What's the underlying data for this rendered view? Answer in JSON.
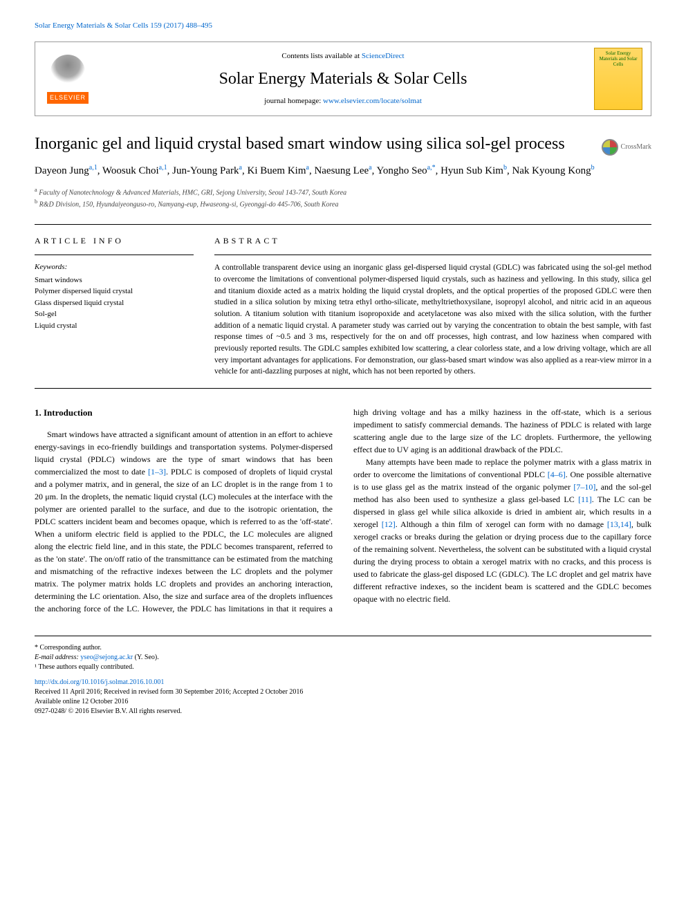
{
  "top_link": "Solar Energy Materials & Solar Cells 159 (2017) 488–495",
  "header": {
    "contents_prefix": "Contents lists available at ",
    "contents_link": "ScienceDirect",
    "journal_name": "Solar Energy Materials & Solar Cells",
    "homepage_prefix": "journal homepage: ",
    "homepage_link": "www.elsevier.com/locate/solmat",
    "elsevier_label": "ELSEVIER",
    "cover_text": "Solar Energy Materials and Solar Cells"
  },
  "crossmark_label": "CrossMark",
  "title": "Inorganic gel and liquid crystal based smart window using silica sol-gel process",
  "authors_html": "Dayeon Jung<sup>a,1</sup>, Woosuk Choi<sup>a,1</sup>, Jun-Young Park<sup>a</sup>, Ki Buem Kim<sup>a</sup>, Naesung Lee<sup>a</sup>, Yongho Seo<sup>a,*</sup>, Hyun Sub Kim<sup>b</sup>, Nak Kyoung Kong<sup>b</sup>",
  "affiliations": {
    "a": "Faculty of Nanotechnology & Advanced Materials, HMC, GRI, Sejong University, Seoul 143-747, South Korea",
    "b": "R&D Division, 150, Hyundaiyeonguso-ro, Namyang-eup, Hwaseong-si, Gyeonggi-do 445-706, South Korea"
  },
  "article_info": {
    "heading": "ARTICLE INFO",
    "keywords_label": "Keywords:",
    "keywords": [
      "Smart windows",
      "Polymer dispersed liquid crystal",
      "Glass dispersed liquid crystal",
      "Sol-gel",
      "Liquid crystal"
    ]
  },
  "abstract": {
    "heading": "ABSTRACT",
    "text": "A controllable transparent device using an inorganic glass gel-dispersed liquid crystal (GDLC) was fabricated using the sol-gel method to overcome the limitations of conventional polymer-dispersed liquid crystals, such as haziness and yellowing. In this study, silica gel and titanium dioxide acted as a matrix holding the liquid crystal droplets, and the optical properties of the proposed GDLC were then studied in a silica solution by mixing tetra ethyl ortho-silicate, methyltriethoxysilane, isopropyl alcohol, and nitric acid in an aqueous solution. A titanium solution with titanium isopropoxide and acetylacetone was also mixed with the silica solution, with the further addition of a nematic liquid crystal. A parameter study was carried out by varying the concentration to obtain the best sample, with fast response times of ~0.5 and 3 ms, respectively for the on and off processes, high contrast, and low haziness when compared with previously reported results. The GDLC samples exhibited low scattering, a clear colorless state, and a low driving voltage, which are all very important advantages for applications. For demonstration, our glass-based smart window was also applied as a rear-view mirror in a vehicle for anti-dazzling purposes at night, which has not been reported by others."
  },
  "introduction": {
    "heading": "1. Introduction",
    "para1_pre": "Smart windows have attracted a significant amount of attention in an effort to achieve energy-savings in eco-friendly buildings and transportation systems. Polymer-dispersed liquid crystal (PDLC) windows are the type of smart windows that has been commercialized the most to date ",
    "ref1": "[1–3]",
    "para1_post": ". PDLC is composed of droplets of liquid crystal and a polymer matrix, and in general, the size of an LC droplet is in the range from 1 to 20 μm. In the droplets, the nematic liquid crystal (LC) molecules at the interface with the polymer are oriented parallel to the surface, and due to the isotropic orientation, the PDLC scatters incident beam and becomes opaque, which is referred to as the 'off-state'. When a uniform electric field is applied to the PDLC, the LC molecules are aligned along the electric field line, and in this state, the PDLC becomes transparent, referred to as the 'on state'. The on/off ratio of the transmittance can be estimated from the matching and mismatching of the refractive indexes between the LC droplets and the polymer matrix. The polymer matrix holds LC droplets and provides an anchoring interaction, determining the LC orientation. Also, the size and surface area of the droplets influences the anchoring force of the LC. However, the PDLC has limitations in that it requires a high driving voltage and has a milky haziness in the off-state, which is a serious impediment to satisfy commercial demands. The haziness of PDLC is related with large scattering angle due to the large size of the LC droplets. Furthermore, the yellowing effect due to UV aging is an additional drawback of the PDLC.",
    "para2_pre": "Many attempts have been made to replace the polymer matrix with a glass matrix in order to overcome the limitations of conventional PDLC ",
    "ref2": "[4–6]",
    "para2_mid1": ". One possible alternative is to use glass gel as the matrix instead of the organic polymer ",
    "ref3": "[7–10]",
    "para2_mid2": ", and the sol-gel method has also been used to synthesize a glass gel-based LC ",
    "ref4": "[11]",
    "para2_mid3": ". The LC can be dispersed in glass gel while silica alkoxide is dried in ambient air, which results in a xerogel ",
    "ref5": "[12]",
    "para2_mid4": ". Although a thin film of xerogel can form with no damage ",
    "ref6": "[13,14]",
    "para2_post": ", bulk xerogel cracks or breaks during the gelation or drying process due to the capillary force of the remaining solvent. Nevertheless, the solvent can be substituted with a liquid crystal during the drying process to obtain a xerogel matrix with no cracks, and this process is used to fabricate the glass-gel disposed LC (GDLC). The LC droplet and gel matrix have different refractive indexes, so the incident beam is scattered and the GDLC becomes opaque with no electric field."
  },
  "footer": {
    "corresponding": "* Corresponding author.",
    "email_label": "E-mail address: ",
    "email": "yseo@sejong.ac.kr",
    "email_suffix": " (Y. Seo).",
    "contrib": "¹ These authors equally contributed.",
    "doi": "http://dx.doi.org/10.1016/j.solmat.2016.10.001",
    "received": "Received 11 April 2016; Received in revised form 30 September 2016; Accepted 2 October 2016",
    "available": "Available online 12 October 2016",
    "copyright": "0927-0248/ © 2016 Elsevier B.V. All rights reserved."
  },
  "colors": {
    "link": "#0066cc",
    "elsevier_orange": "#ff6600",
    "cover_bg": "#ffd966",
    "text": "#000000"
  }
}
